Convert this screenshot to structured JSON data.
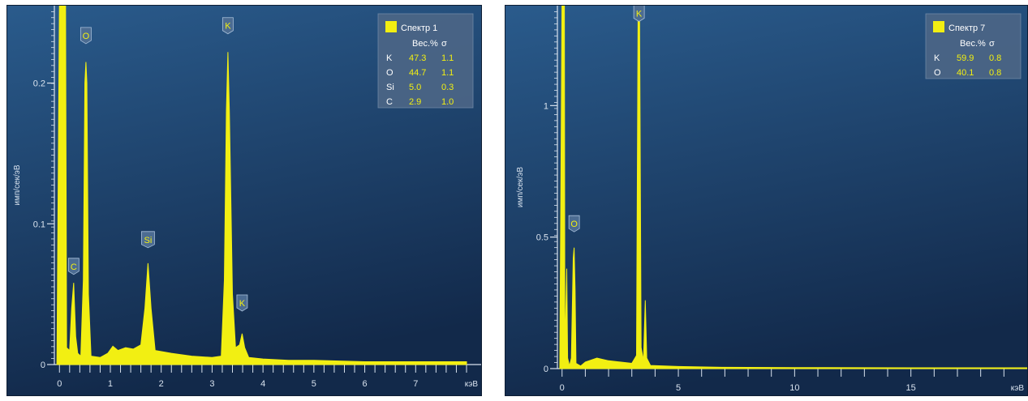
{
  "colors": {
    "background_top": "#2a5b8c",
    "background_bottom": "#12294a",
    "spectrum": "#f2ef12",
    "axis": "#d8e2ee",
    "legend_bg": "#4c6686",
    "value_text": "#f2ef12",
    "label_text": "#ffffff"
  },
  "chart_data": [
    {
      "type": "line",
      "xlabel": "кэВ",
      "ylabel": "имп/сек/эВ",
      "xlim": [
        -0.1,
        8.0
      ],
      "ylim": [
        0,
        0.255
      ],
      "x_ticks": [
        "0",
        "1",
        "2",
        "3",
        "4",
        "5",
        "6",
        "7"
      ],
      "y_ticks": [
        {
          "value": 0,
          "label": "0"
        },
        {
          "value": 0.1,
          "label": "0.1"
        },
        {
          "value": 0.2,
          "label": "0.2"
        }
      ],
      "legend": {
        "title": "Спектр 1",
        "header": [
          "",
          "Вес.%",
          "σ"
        ],
        "rows": [
          [
            "K",
            "47.3",
            "1.1"
          ],
          [
            "O",
            "44.7",
            "1.1"
          ],
          [
            "Si",
            "5.0",
            "0.3"
          ],
          [
            "C",
            "2.9",
            "1.0"
          ]
        ],
        "position": "top-right"
      },
      "peaks": [
        {
          "element": "C",
          "x": 0.28,
          "y": 0.058
        },
        {
          "element": "O",
          "x": 0.52,
          "y": 0.215
        },
        {
          "element": "Si",
          "x": 1.74,
          "y": 0.072
        },
        {
          "element": "K",
          "x": 3.31,
          "y": 0.222
        },
        {
          "element": "K",
          "x": 3.59,
          "y": 0.022
        }
      ],
      "peak_labels": [
        {
          "text": "C",
          "x": 0.28,
          "y": 0.064
        },
        {
          "text": "O",
          "x": 0.52,
          "y": 0.228
        },
        {
          "text": "Si",
          "x": 1.74,
          "y": 0.083
        },
        {
          "text": "K",
          "x": 3.31,
          "y": 0.235
        },
        {
          "text": "K",
          "x": 3.59,
          "y": 0.038
        }
      ],
      "points": [
        [
          -0.05,
          0
        ],
        [
          0.0,
          0.26
        ],
        [
          0.12,
          0.26
        ],
        [
          0.14,
          0.012
        ],
        [
          0.2,
          0.01
        ],
        [
          0.24,
          0.04
        ],
        [
          0.28,
          0.058
        ],
        [
          0.32,
          0.02
        ],
        [
          0.36,
          0.008
        ],
        [
          0.42,
          0.006
        ],
        [
          0.47,
          0.06
        ],
        [
          0.5,
          0.2
        ],
        [
          0.52,
          0.215
        ],
        [
          0.54,
          0.2
        ],
        [
          0.57,
          0.05
        ],
        [
          0.62,
          0.006
        ],
        [
          0.8,
          0.005
        ],
        [
          0.95,
          0.008
        ],
        [
          1.05,
          0.013
        ],
        [
          1.15,
          0.01
        ],
        [
          1.3,
          0.012
        ],
        [
          1.45,
          0.011
        ],
        [
          1.6,
          0.014
        ],
        [
          1.68,
          0.04
        ],
        [
          1.74,
          0.072
        ],
        [
          1.8,
          0.04
        ],
        [
          1.88,
          0.01
        ],
        [
          2.2,
          0.008
        ],
        [
          2.6,
          0.006
        ],
        [
          3.0,
          0.005
        ],
        [
          3.18,
          0.006
        ],
        [
          3.24,
          0.06
        ],
        [
          3.28,
          0.18
        ],
        [
          3.31,
          0.222
        ],
        [
          3.34,
          0.18
        ],
        [
          3.4,
          0.05
        ],
        [
          3.46,
          0.012
        ],
        [
          3.54,
          0.014
        ],
        [
          3.59,
          0.022
        ],
        [
          3.64,
          0.012
        ],
        [
          3.72,
          0.005
        ],
        [
          4.0,
          0.004
        ],
        [
          4.5,
          0.003
        ],
        [
          5.0,
          0.003
        ],
        [
          6.0,
          0.002
        ],
        [
          7.0,
          0.002
        ],
        [
          8.0,
          0.002
        ]
      ]
    },
    {
      "type": "line",
      "xlabel": "кэВ",
      "ylabel": "имп/сек/эВ",
      "xlim": [
        -0.2,
        20.0
      ],
      "ylim": [
        0,
        1.38
      ],
      "x_ticks": [
        "0",
        "5",
        "10",
        "15"
      ],
      "x_tick_values": [
        0,
        5,
        10,
        15
      ],
      "y_ticks": [
        {
          "value": 0,
          "label": "0"
        },
        {
          "value": 0.5,
          "label": "0.5"
        },
        {
          "value": 1,
          "label": "1"
        }
      ],
      "legend": {
        "title": "Спектр 7",
        "header": [
          "",
          "Вес.%",
          "σ"
        ],
        "rows": [
          [
            "K",
            "59.9",
            "0.8"
          ],
          [
            "O",
            "40.1",
            "0.8"
          ]
        ],
        "position": "top-right"
      },
      "peaks": [
        {
          "element": "O",
          "x": 0.52,
          "y": 0.46
        },
        {
          "element": "K",
          "x": 3.31,
          "y": 1.4
        }
      ],
      "peak_labels": [
        {
          "text": "O",
          "x": 0.52,
          "y": 0.52
        },
        {
          "text": "K",
          "x": 3.31,
          "y": 1.32
        }
      ],
      "points": [
        [
          -0.1,
          0
        ],
        [
          0.0,
          1.42
        ],
        [
          0.1,
          1.42
        ],
        [
          0.12,
          0.05
        ],
        [
          0.2,
          0.38
        ],
        [
          0.24,
          0.04
        ],
        [
          0.32,
          0.01
        ],
        [
          0.4,
          0.04
        ],
        [
          0.48,
          0.42
        ],
        [
          0.52,
          0.46
        ],
        [
          0.56,
          0.3
        ],
        [
          0.6,
          0.02
        ],
        [
          0.8,
          0.01
        ],
        [
          1.0,
          0.025
        ],
        [
          1.5,
          0.04
        ],
        [
          2.0,
          0.03
        ],
        [
          2.5,
          0.025
        ],
        [
          3.0,
          0.02
        ],
        [
          3.2,
          0.05
        ],
        [
          3.27,
          1.4
        ],
        [
          3.33,
          1.4
        ],
        [
          3.4,
          0.08
        ],
        [
          3.5,
          0.03
        ],
        [
          3.58,
          0.26
        ],
        [
          3.64,
          0.04
        ],
        [
          3.8,
          0.012
        ],
        [
          5.0,
          0.008
        ],
        [
          7.0,
          0.005
        ],
        [
          10.0,
          0.004
        ],
        [
          15.0,
          0.003
        ],
        [
          20.0,
          0.003
        ]
      ]
    }
  ]
}
